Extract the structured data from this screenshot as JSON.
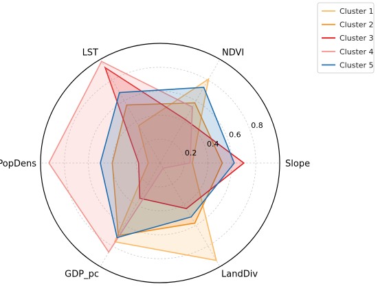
{
  "chart_data": {
    "type": "radar",
    "axes": [
      "Slope",
      "NDVI",
      "LST",
      "PopDens",
      "GDP_pc",
      "LandDiv"
    ],
    "rlim": [
      0,
      1
    ],
    "rticks": [
      0.2,
      0.4,
      0.6,
      0.8
    ],
    "rtick_labels": [
      "0.2",
      "0.4",
      "0.6",
      "0.8"
    ],
    "grid": true,
    "legend_position": "top-right",
    "series": [
      {
        "name": "Cluster 1",
        "color": "#fdb863",
        "values": [
          0.27,
          0.81,
          0.36,
          0.1,
          0.76,
          0.94
        ]
      },
      {
        "name": "Cluster 2",
        "color": "#f08c1b",
        "values": [
          0.52,
          0.58,
          0.56,
          0.4,
          0.7,
          0.58
        ]
      },
      {
        "name": "Cluster 3",
        "color": "#e31a1c",
        "values": [
          0.7,
          0.42,
          0.92,
          0.18,
          0.34,
          0.44
        ]
      },
      {
        "name": "Cluster 4",
        "color": "#f4938e",
        "values": [
          0.25,
          0.54,
          0.98,
          0.93,
          0.86,
          0.05
        ]
      },
      {
        "name": "Cluster 5",
        "color": "#1f6eb0",
        "values": [
          0.62,
          0.73,
          0.68,
          0.5,
          0.72,
          0.52
        ]
      }
    ]
  }
}
